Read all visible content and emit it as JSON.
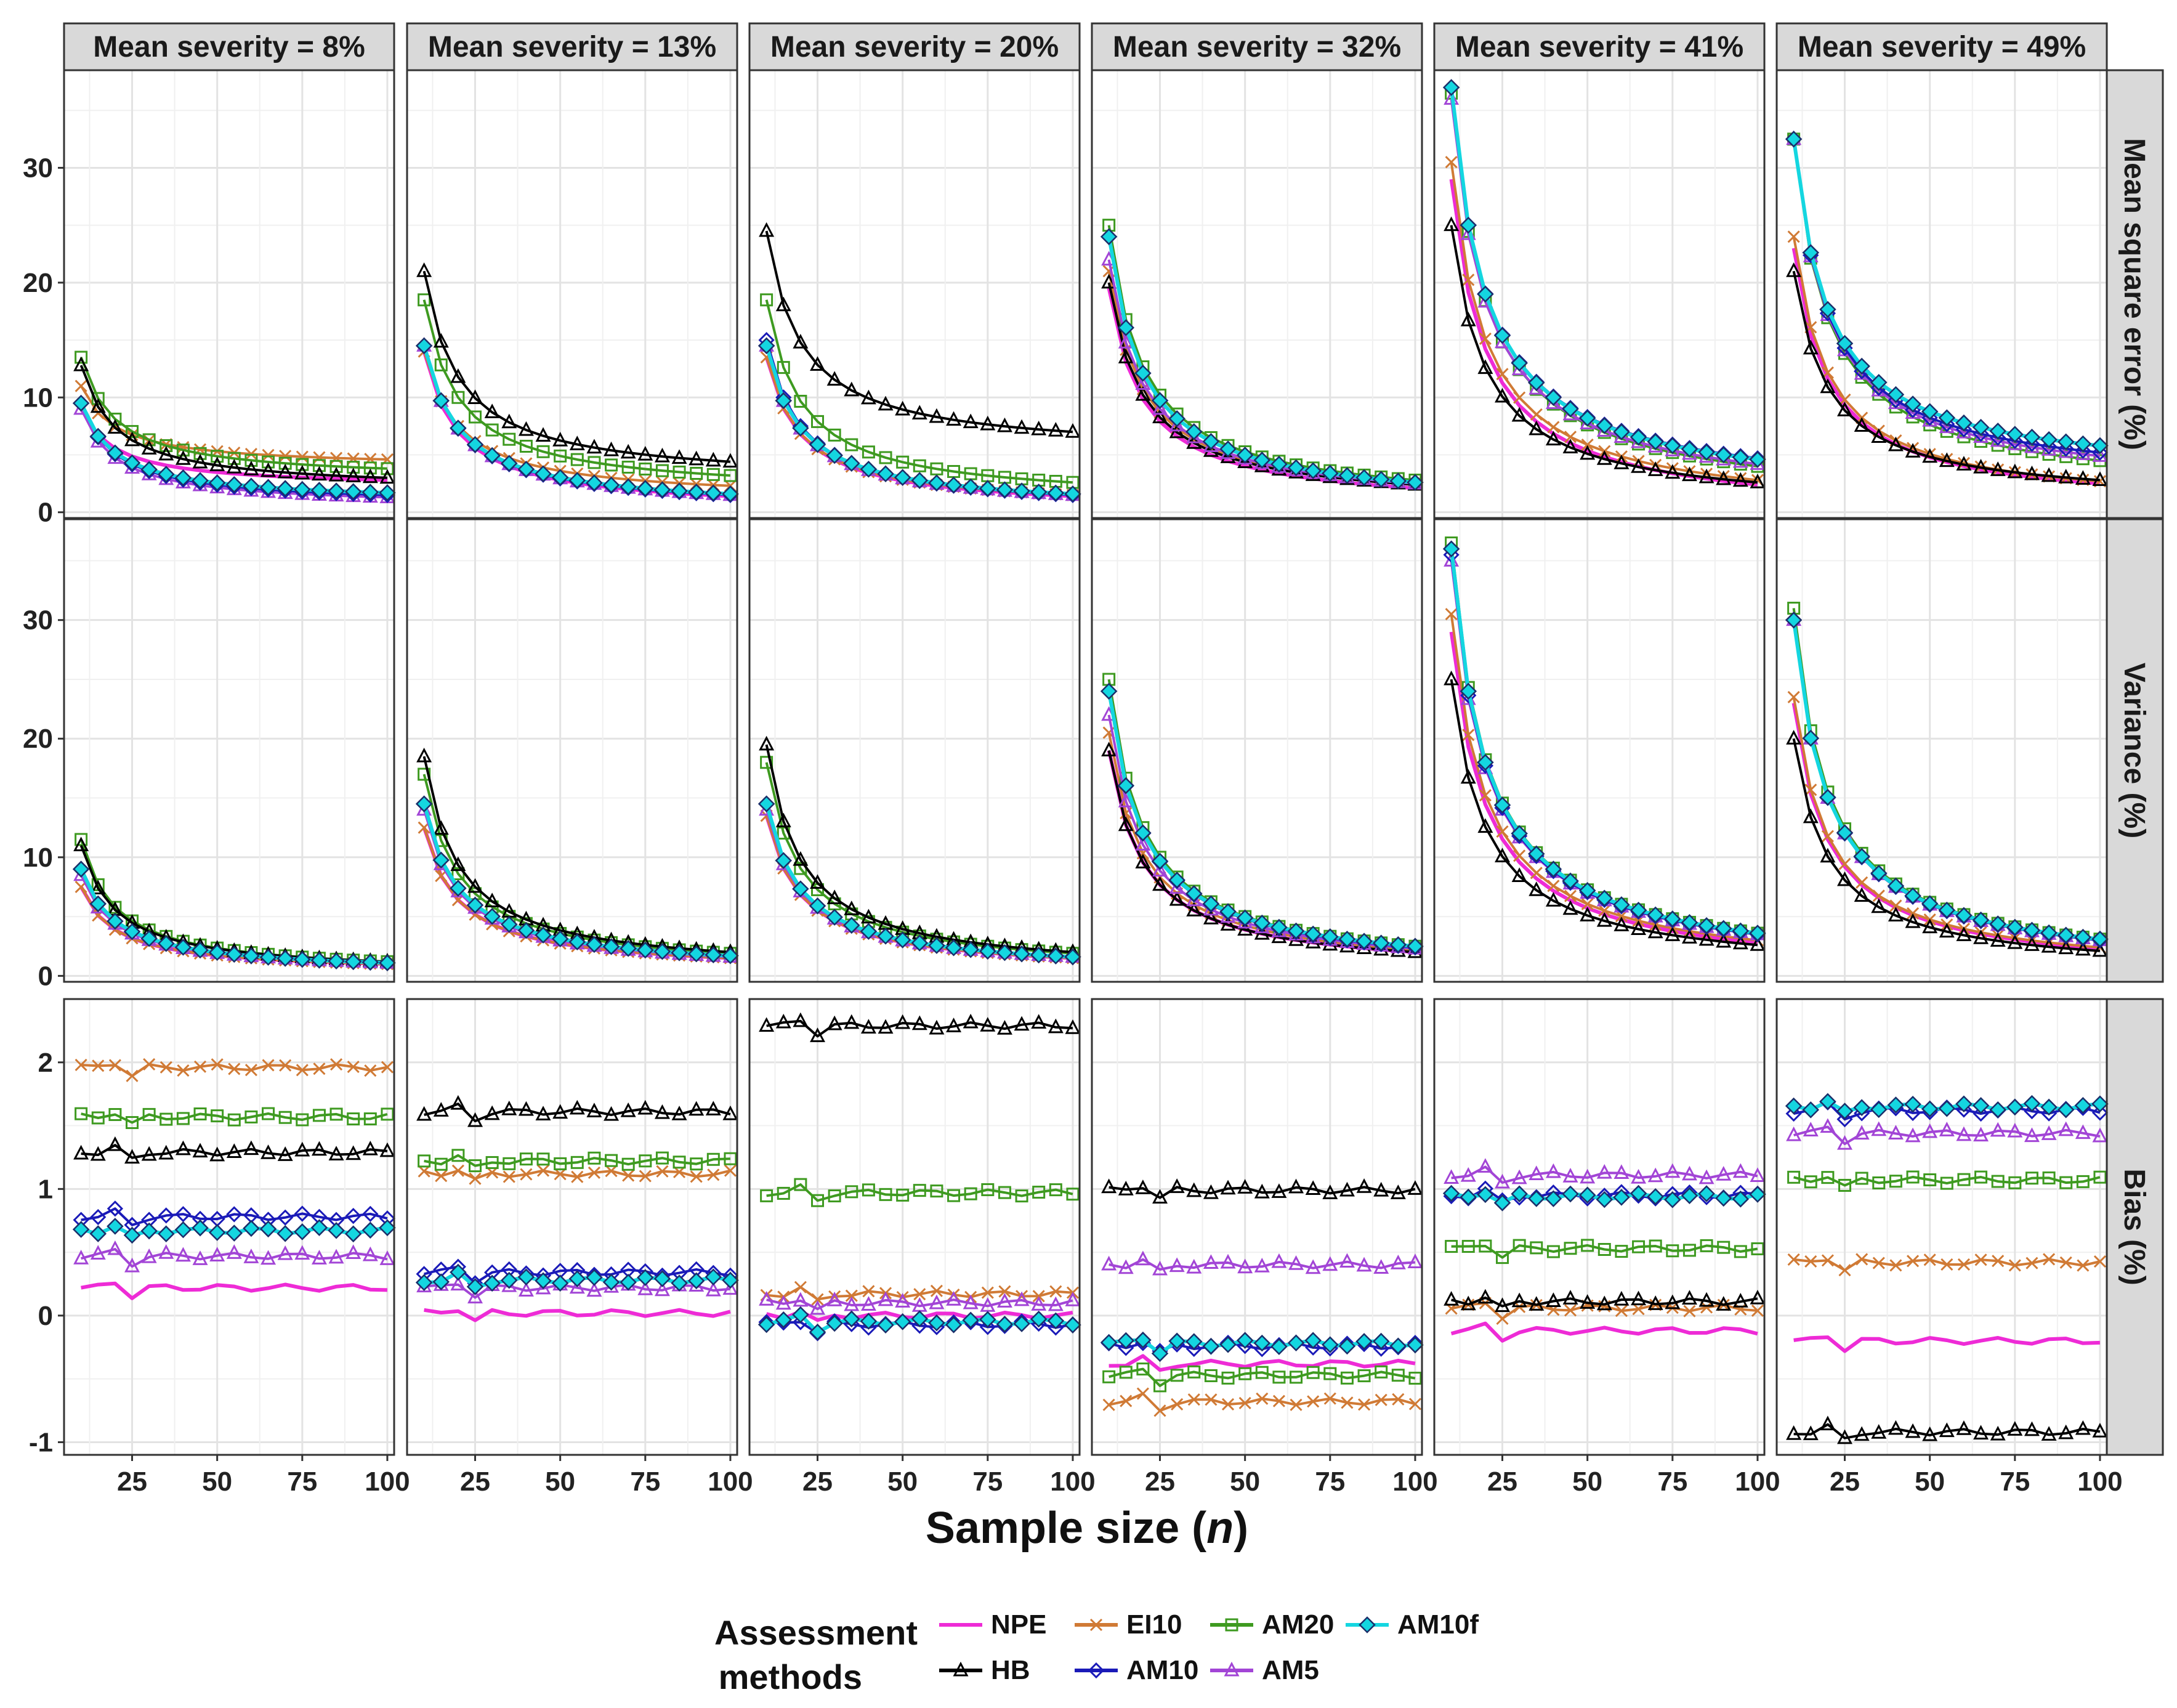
{
  "chart_data": {
    "type": "line",
    "facet_grid": true,
    "x_axis": {
      "label_prefix": "Sample size (",
      "label_italic": "n",
      "label_suffix": ")",
      "ticks": [
        25,
        50,
        75,
        100
      ],
      "range": [
        5,
        102
      ]
    },
    "columns": [
      "Mean severity = 8%",
      "Mean severity = 13%",
      "Mean severity = 20%",
      "Mean severity = 32%",
      "Mean severity = 41%",
      "Mean severity = 49%"
    ],
    "rows": [
      {
        "label": "Mean square error (%)",
        "ylim": [
          -0.5,
          38.5
        ],
        "ticks": [
          0,
          10,
          20,
          30
        ],
        "tick_labels": [
          "0",
          "10",
          "20",
          "30"
        ]
      },
      {
        "label": "Variance (%)",
        "ylim": [
          -0.5,
          38.5
        ],
        "ticks": [
          0,
          10,
          20,
          30
        ],
        "tick_labels": [
          "0",
          "10",
          "20",
          "30"
        ]
      },
      {
        "label": "Bias (%)",
        "ylim": [
          -1.1,
          2.5
        ],
        "ticks": [
          -1,
          0,
          1,
          2
        ],
        "tick_labels": [
          "-1",
          "0",
          "1",
          "2"
        ]
      }
    ],
    "x": [
      10,
      15,
      20,
      25,
      30,
      35,
      40,
      45,
      50,
      55,
      60,
      65,
      70,
      75,
      80,
      85,
      90,
      95,
      100
    ],
    "series": [
      {
        "name": "NPE",
        "color": "#ee2bd6",
        "marker": "none"
      },
      {
        "name": "EI10",
        "color": "#d07a35",
        "marker": "x"
      },
      {
        "name": "AM20",
        "color": "#3e9a20",
        "marker": "square"
      },
      {
        "name": "AM10f",
        "color": "#14d6e0",
        "marker": "diamond-filled"
      },
      {
        "name": "HB",
        "color": "#000000",
        "marker": "triangle"
      },
      {
        "name": "AM10",
        "color": "#1a1ab8",
        "marker": "diamond"
      },
      {
        "name": "AM5",
        "color": "#a245d6",
        "marker": "triangle"
      }
    ],
    "mse": [
      {
        "NPE": [
          9,
          2.8
        ],
        "EI10": [
          11,
          4.6
        ],
        "AM20": [
          13.5,
          3.8
        ],
        "AM10f": [
          9.5,
          1.7
        ],
        "HB": [
          12.8,
          3.0
        ],
        "AM10": [
          9.5,
          1.5
        ],
        "AM5": [
          9.0,
          1.3
        ]
      },
      {
        "NPE": [
          14,
          1.4
        ],
        "EI10": [
          14,
          2.3
        ],
        "AM20": [
          18.5,
          3.2
        ],
        "AM10f": [
          14.5,
          1.6
        ],
        "HB": [
          21,
          4.4
        ],
        "AM10": [
          14.5,
          1.5
        ],
        "AM5": [
          14.5,
          1.5
        ]
      },
      {
        "NPE": [
          13.5,
          1.4
        ],
        "EI10": [
          13.5,
          1.5
        ],
        "AM20": [
          18.5,
          2.6
        ],
        "AM10f": [
          14.5,
          1.6
        ],
        "HB": [
          24.5,
          7.0
        ],
        "AM10": [
          15,
          1.5
        ],
        "AM5": [
          14.5,
          1.5
        ]
      },
      {
        "NPE": [
          19.5,
          2.1
        ],
        "EI10": [
          21,
          2.5
        ],
        "AM20": [
          25,
          2.8
        ],
        "AM10f": [
          24,
          2.6
        ],
        "HB": [
          20,
          2.4
        ],
        "AM10": [
          24,
          2.6
        ],
        "AM5": [
          22,
          2.5
        ]
      },
      {
        "NPE": [
          29,
          2.4
        ],
        "EI10": [
          30.5,
          2.8
        ],
        "AM20": [
          36.5,
          4.0
        ],
        "AM10f": [
          37,
          4.6
        ],
        "HB": [
          25,
          2.6
        ],
        "AM10": [
          37,
          4.7
        ],
        "AM5": [
          36,
          4.2
        ]
      },
      {
        "NPE": [
          23,
          2.5
        ],
        "EI10": [
          24,
          2.7
        ],
        "AM20": [
          32.5,
          4.5
        ],
        "AM10f": [
          32.5,
          5.8
        ],
        "HB": [
          21,
          2.8
        ],
        "AM10": [
          32.5,
          5.2
        ],
        "AM5": [
          32.5,
          4.9
        ]
      }
    ],
    "variance": [
      {
        "NPE": [
          7.5,
          1.0
        ],
        "EI10": [
          7.5,
          1.0
        ],
        "AM20": [
          11.5,
          1.2
        ],
        "AM10f": [
          9,
          1.1
        ],
        "HB": [
          11,
          1.2
        ],
        "AM10": [
          9,
          1.1
        ],
        "AM5": [
          8.5,
          1.1
        ]
      },
      {
        "NPE": [
          12.5,
          1.5
        ],
        "EI10": [
          12.5,
          1.5
        ],
        "AM20": [
          17,
          1.9
        ],
        "AM10f": [
          14.5,
          1.7
        ],
        "HB": [
          18.5,
          2.0
        ],
        "AM10": [
          14.5,
          1.7
        ],
        "AM5": [
          14,
          1.6
        ]
      },
      {
        "NPE": [
          13.5,
          1.5
        ],
        "EI10": [
          13.5,
          1.5
        ],
        "AM20": [
          18,
          1.9
        ],
        "AM10f": [
          14.5,
          1.6
        ],
        "HB": [
          19.5,
          2.0
        ],
        "AM10": [
          14.5,
          1.6
        ],
        "AM5": [
          14,
          1.6
        ]
      },
      {
        "NPE": [
          19,
          2.0
        ],
        "EI10": [
          20.5,
          2.2
        ],
        "AM20": [
          25,
          2.5
        ],
        "AM10f": [
          24,
          2.5
        ],
        "HB": [
          19,
          2.0
        ],
        "AM10": [
          24,
          2.4
        ],
        "AM5": [
          22,
          2.3
        ]
      },
      {
        "NPE": [
          29,
          2.8
        ],
        "EI10": [
          30.5,
          3.0
        ],
        "AM20": [
          36.5,
          3.6
        ],
        "AM10f": [
          36,
          3.6
        ],
        "HB": [
          25,
          2.6
        ],
        "AM10": [
          35.5,
          3.5
        ],
        "AM5": [
          35,
          3.5
        ]
      },
      {
        "NPE": [
          23,
          2.3
        ],
        "EI10": [
          23.5,
          2.4
        ],
        "AM20": [
          31,
          3.1
        ],
        "AM10f": [
          30,
          3.1
        ],
        "HB": [
          20,
          2.1
        ],
        "AM10": [
          30,
          3.0
        ],
        "AM5": [
          30,
          3.0
        ]
      }
    ],
    "bias": [
      {
        "NPE": 0.22,
        "EI10": 1.96,
        "AM20": 1.57,
        "AM10f": 0.67,
        "HB": 1.29,
        "AM10": 0.78,
        "AM5": 0.47
      },
      {
        "NPE": 0.02,
        "EI10": 1.12,
        "AM20": 1.22,
        "AM10f": 0.28,
        "HB": 1.61,
        "AM10": 0.34,
        "AM5": 0.22
      },
      {
        "NPE": 0.0,
        "EI10": 0.17,
        "AM20": 0.97,
        "AM10f": -0.05,
        "HB": 2.29,
        "AM10": -0.07,
        "AM5": 0.1
      },
      {
        "NPE": -0.38,
        "EI10": -0.68,
        "AM20": -0.47,
        "AM10f": -0.22,
        "HB": 0.99,
        "AM10": -0.24,
        "AM5": 0.4
      },
      {
        "NPE": -0.12,
        "EI10": 0.06,
        "AM20": 0.53,
        "AM10f": 0.94,
        "HB": 0.11,
        "AM10": 0.95,
        "AM5": 1.11
      },
      {
        "NPE": -0.2,
        "EI10": 0.42,
        "AM20": 1.07,
        "AM10f": 1.65,
        "HB": -0.92,
        "AM10": 1.62,
        "AM5": 1.44
      }
    ],
    "legend": {
      "title_line1": "Assessment",
      "title_line2": "methods",
      "position": "bottom",
      "row1": [
        "NPE",
        "EI10",
        "AM20",
        "AM10f"
      ],
      "row2": [
        "HB",
        "AM10",
        "AM5"
      ]
    }
  }
}
